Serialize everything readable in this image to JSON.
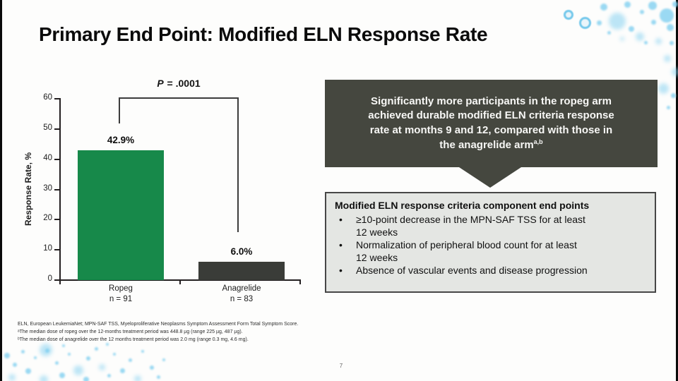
{
  "slide": {
    "title": "Primary End Point: Modified ELN Response Rate",
    "page_number": "7"
  },
  "chart_data": {
    "type": "bar",
    "categories": [
      "Ropeg",
      "Anagrelide"
    ],
    "sample_sizes": [
      "n = 91",
      "n = 83"
    ],
    "values": [
      42.9,
      6.0
    ],
    "value_labels": [
      "42.9%",
      "6.0%"
    ],
    "bar_colors": [
      "#17894a",
      "#3a3c38"
    ],
    "ylabel": "Response Rate, %",
    "xlabel": "",
    "ylim": [
      0,
      60
    ],
    "yticks": [
      0,
      10,
      20,
      30,
      40,
      50,
      60
    ],
    "grid": false,
    "legend": false,
    "annotation": {
      "p_symbol": "P",
      "p_rest": " = .0001"
    }
  },
  "callout": {
    "text": "Significantly more participants in the ropeg arm\nachieved durable modified ELN criteria response\nrate at months 9 and 12, compared with those in\nthe anagrelide arm",
    "superscript": "a,b",
    "background": "#45473f"
  },
  "criteria_box": {
    "heading": "Modified ELN response criteria component end points",
    "bullets": [
      "≥10-point decrease in the MPN-SAF TSS for at least\n12 weeks",
      "Normalization of peripheral blood count for at least\n12 weeks",
      "Absence of vascular events and disease progression"
    ]
  },
  "footnotes": [
    "ELN, European LeukemiaNet; MPN-SAF TSS, Myeloproliferative Neoplasms Symptom Assessment Form Total Symptom Score.",
    "ᵃThe median dose of ropeg over the 12-months treatment period was 448.8 µg (range 225 µg, 487 µg).",
    "ᵇThe median dose of anagrelide over the 12 months treatment period was 2.0 mg (range 0.3 mg, 4.6 mg)."
  ]
}
